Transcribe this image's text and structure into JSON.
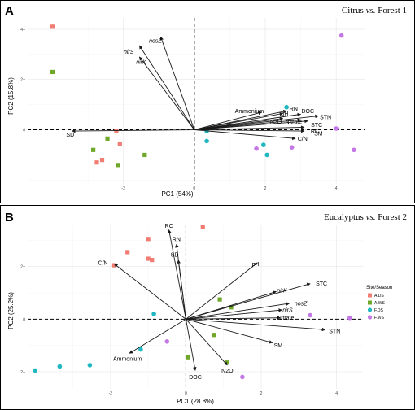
{
  "colors": {
    "A.DS": "#f07c72",
    "A.WS": "#6fa828",
    "F.DS": "#20b8c0",
    "F.WS": "#c378e6",
    "arrow": "#1a1a1a"
  },
  "chart_data": [
    {
      "type": "scatter",
      "panel": "A",
      "title_prefix": "Citrus ",
      "title_vs": "vs.",
      "title_suffix": " Forest 1",
      "xlabel": "PC1 (54%)",
      "ylabel": "PC2 (15.8%)",
      "xlim": [
        -4.7,
        4.8
      ],
      "ylim": [
        -2.15,
        4.45
      ],
      "xticks": [
        -2,
        0,
        2,
        4
      ],
      "yticks": [
        0,
        2,
        4
      ],
      "tick_labels": {
        "x": [
          "-2",
          "0",
          "2",
          "4"
        ],
        "y": [
          "0",
          "2+",
          "4+"
        ]
      },
      "points": [
        {
          "group": "A.DS",
          "shape": "square",
          "x": -4.0,
          "y": 4.1
        },
        {
          "group": "A.DS",
          "shape": "square",
          "x": -2.2,
          "y": -0.05
        },
        {
          "group": "A.DS",
          "shape": "square",
          "x": -2.1,
          "y": -0.55
        },
        {
          "group": "A.DS",
          "shape": "square",
          "x": -2.6,
          "y": -1.2
        },
        {
          "group": "A.DS",
          "shape": "square",
          "x": -2.75,
          "y": -1.3
        },
        {
          "group": "A.WS",
          "shape": "square",
          "x": -4.0,
          "y": 2.3
        },
        {
          "group": "A.WS",
          "shape": "square",
          "x": -2.45,
          "y": -0.35
        },
        {
          "group": "A.WS",
          "shape": "square",
          "x": -2.85,
          "y": -0.8
        },
        {
          "group": "A.WS",
          "shape": "square",
          "x": -1.4,
          "y": -1.0
        },
        {
          "group": "A.WS",
          "shape": "square",
          "x": -2.15,
          "y": -1.4
        },
        {
          "group": "F.DS",
          "shape": "circle",
          "x": 2.6,
          "y": 0.9
        },
        {
          "group": "F.DS",
          "shape": "circle",
          "x": 0.35,
          "y": -0.05
        },
        {
          "group": "F.DS",
          "shape": "circle",
          "x": 0.35,
          "y": -0.45
        },
        {
          "group": "F.DS",
          "shape": "circle",
          "x": 1.95,
          "y": -0.6
        },
        {
          "group": "F.DS",
          "shape": "circle",
          "x": 2.05,
          "y": -1.0
        },
        {
          "group": "F.WS",
          "shape": "circle",
          "x": 4.15,
          "y": 3.75
        },
        {
          "group": "F.WS",
          "shape": "circle",
          "x": 1.75,
          "y": -0.75
        },
        {
          "group": "F.WS",
          "shape": "circle",
          "x": 2.75,
          "y": -0.7
        },
        {
          "group": "F.WS",
          "shape": "circle",
          "x": 4.0,
          "y": 0.05
        },
        {
          "group": "F.WS",
          "shape": "circle",
          "x": 4.5,
          "y": -0.8
        }
      ],
      "vectors": [
        {
          "label": "nosZ",
          "italic": true,
          "x": -0.95,
          "y": 3.7,
          "lx": -1.1,
          "ly": 3.55
        },
        {
          "label": "nirS",
          "italic": true,
          "x": -1.55,
          "y": 3.35,
          "lx": -1.85,
          "ly": 3.1
        },
        {
          "label": "nirK",
          "italic": true,
          "x": -1.55,
          "y": 2.9,
          "lx": -1.5,
          "ly": 2.7
        },
        {
          "label": "SD",
          "italic": false,
          "x": -3.45,
          "y": -0.05,
          "lx": -3.5,
          "ly": -0.2
        },
        {
          "label": "Ammonium",
          "italic": false,
          "x": 1.9,
          "y": 0.7,
          "lx": 1.55,
          "ly": 0.75
        },
        {
          "label": "RN",
          "italic": false,
          "x": 2.6,
          "y": 0.75,
          "lx": 2.8,
          "ly": 0.85
        },
        {
          "label": "pH",
          "italic": false,
          "x": 2.5,
          "y": 0.65,
          "lx": 2.55,
          "ly": 0.65
        },
        {
          "label": "DOC",
          "italic": false,
          "x": 3.0,
          "y": 0.62,
          "lx": 3.2,
          "ly": 0.75
        },
        {
          "label": "STN",
          "italic": false,
          "x": 3.5,
          "y": 0.55,
          "lx": 3.7,
          "ly": 0.5
        },
        {
          "label": "N2O",
          "italic": false,
          "x": 2.5,
          "y": 0.45,
          "lx": 2.3,
          "ly": 0.33
        },
        {
          "label": "Nitrate",
          "italic": false,
          "x": 3.0,
          "y": 0.4,
          "lx": 2.8,
          "ly": 0.33
        },
        {
          "label": "STC",
          "italic": false,
          "x": 3.2,
          "y": 0.35,
          "lx": 3.45,
          "ly": 0.2
        },
        {
          "label": "RC",
          "italic": false,
          "x": 3.1,
          "y": 0.1,
          "lx": 3.4,
          "ly": -0.05
        },
        {
          "label": "SM",
          "italic": false,
          "x": 3.1,
          "y": -0.05,
          "lx": 3.5,
          "ly": -0.15
        },
        {
          "label": "C/N",
          "italic": false,
          "x": 2.85,
          "y": -0.35,
          "lx": 3.05,
          "ly": -0.35
        }
      ]
    },
    {
      "type": "scatter",
      "panel": "B",
      "title_prefix": "Eucalyptus ",
      "title_vs": "vs.",
      "title_suffix": " Forest 2",
      "xlabel": "PC1 (28.8%)",
      "ylabel": "PC2 (25.2%)",
      "xlim": [
        -4.2,
        4.7
      ],
      "ylim": [
        -2.65,
        3.6
      ],
      "xticks": [
        -2,
        0,
        2,
        4
      ],
      "yticks": [
        -2,
        0,
        2
      ],
      "tick_labels": {
        "x": [
          "-2",
          "0",
          "2",
          "4"
        ],
        "y": [
          "-2+",
          "0",
          "2+"
        ]
      },
      "legend": {
        "title": "Site/Season",
        "entries": [
          {
            "label": "A.DS",
            "group": "A.DS",
            "shape": "square"
          },
          {
            "label": "A.WS",
            "group": "A.WS",
            "shape": "square"
          },
          {
            "label": "F.DS",
            "group": "F.DS",
            "shape": "circle"
          },
          {
            "label": "F.WS",
            "group": "F.WS",
            "shape": "circle"
          }
        ]
      },
      "points": [
        {
          "group": "A.DS",
          "shape": "square",
          "x": 0.45,
          "y": 3.5
        },
        {
          "group": "A.DS",
          "shape": "square",
          "x": -1.0,
          "y": 3.05
        },
        {
          "group": "A.DS",
          "shape": "square",
          "x": -1.55,
          "y": 2.55
        },
        {
          "group": "A.DS",
          "shape": "square",
          "x": -1.9,
          "y": 2.05
        },
        {
          "group": "A.DS",
          "shape": "square",
          "x": -1.0,
          "y": 2.3
        },
        {
          "group": "A.DS",
          "shape": "square",
          "x": -0.9,
          "y": 2.25
        },
        {
          "group": "A.WS",
          "shape": "square",
          "x": 0.9,
          "y": 0.75
        },
        {
          "group": "A.WS",
          "shape": "square",
          "x": 1.2,
          "y": 0.45
        },
        {
          "group": "A.WS",
          "shape": "square",
          "x": 0.75,
          "y": -0.6
        },
        {
          "group": "A.WS",
          "shape": "square",
          "x": 1.1,
          "y": -1.65
        },
        {
          "group": "A.WS",
          "shape": "square",
          "x": 0.05,
          "y": -1.45
        },
        {
          "group": "F.DS",
          "shape": "circle",
          "x": -0.85,
          "y": 0.2
        },
        {
          "group": "F.DS",
          "shape": "circle",
          "x": -1.2,
          "y": -1.15
        },
        {
          "group": "F.DS",
          "shape": "circle",
          "x": -2.55,
          "y": -1.75
        },
        {
          "group": "F.DS",
          "shape": "circle",
          "x": -3.35,
          "y": -1.8
        },
        {
          "group": "F.DS",
          "shape": "circle",
          "x": -4.0,
          "y": -1.95
        },
        {
          "group": "F.WS",
          "shape": "circle",
          "x": 3.3,
          "y": 0.15
        },
        {
          "group": "F.WS",
          "shape": "circle",
          "x": 4.35,
          "y": 0.05
        },
        {
          "group": "F.WS",
          "shape": "circle",
          "x": -0.5,
          "y": -0.85
        },
        {
          "group": "F.WS",
          "shape": "circle",
          "x": 1.5,
          "y": -2.2
        }
      ],
      "vectors": [
        {
          "label": "RC",
          "italic": false,
          "x": -0.45,
          "y": 3.4,
          "lx": -0.45,
          "ly": 3.55
        },
        {
          "label": "RN",
          "italic": false,
          "x": -0.25,
          "y": 2.85,
          "lx": -0.25,
          "ly": 3.05
        },
        {
          "label": "SD",
          "italic": false,
          "x": -0.2,
          "y": 2.25,
          "lx": -0.3,
          "ly": 2.45
        },
        {
          "label": "C/N",
          "italic": false,
          "x": -1.9,
          "y": 2.1,
          "lx": -2.2,
          "ly": 2.15
        },
        {
          "label": "pH",
          "italic": false,
          "x": 1.9,
          "y": 2.15,
          "lx": 1.85,
          "ly": 2.1
        },
        {
          "label": "nirK",
          "italic": true,
          "x": 2.4,
          "y": 1.05,
          "lx": 2.55,
          "ly": 1.1
        },
        {
          "label": "STC",
          "italic": false,
          "x": 3.3,
          "y": 1.35,
          "lx": 3.6,
          "ly": 1.35
        },
        {
          "label": "nosZ",
          "italic": true,
          "x": 2.75,
          "y": 0.6,
          "lx": 3.05,
          "ly": 0.6
        },
        {
          "label": "nirS",
          "italic": true,
          "x": 2.55,
          "y": 0.35,
          "lx": 2.7,
          "ly": 0.35
        },
        {
          "label": "Nitrate",
          "italic": false,
          "x": 2.5,
          "y": 0.05,
          "lx": 2.65,
          "ly": 0.05
        },
        {
          "label": "STN",
          "italic": false,
          "x": 3.7,
          "y": -0.4,
          "lx": 3.95,
          "ly": -0.45
        },
        {
          "label": "SM",
          "italic": false,
          "x": 2.3,
          "y": -0.9,
          "lx": 2.45,
          "ly": -1.0
        },
        {
          "label": "N2O",
          "italic": false,
          "x": 1.1,
          "y": -1.75,
          "lx": 1.1,
          "ly": -1.95
        },
        {
          "label": "DOC",
          "italic": false,
          "x": 0.25,
          "y": -1.95,
          "lx": 0.25,
          "ly": -2.2
        },
        {
          "label": "Ammonium",
          "italic": false,
          "x": -1.5,
          "y": -1.3,
          "lx": -1.55,
          "ly": -1.5
        }
      ]
    }
  ]
}
